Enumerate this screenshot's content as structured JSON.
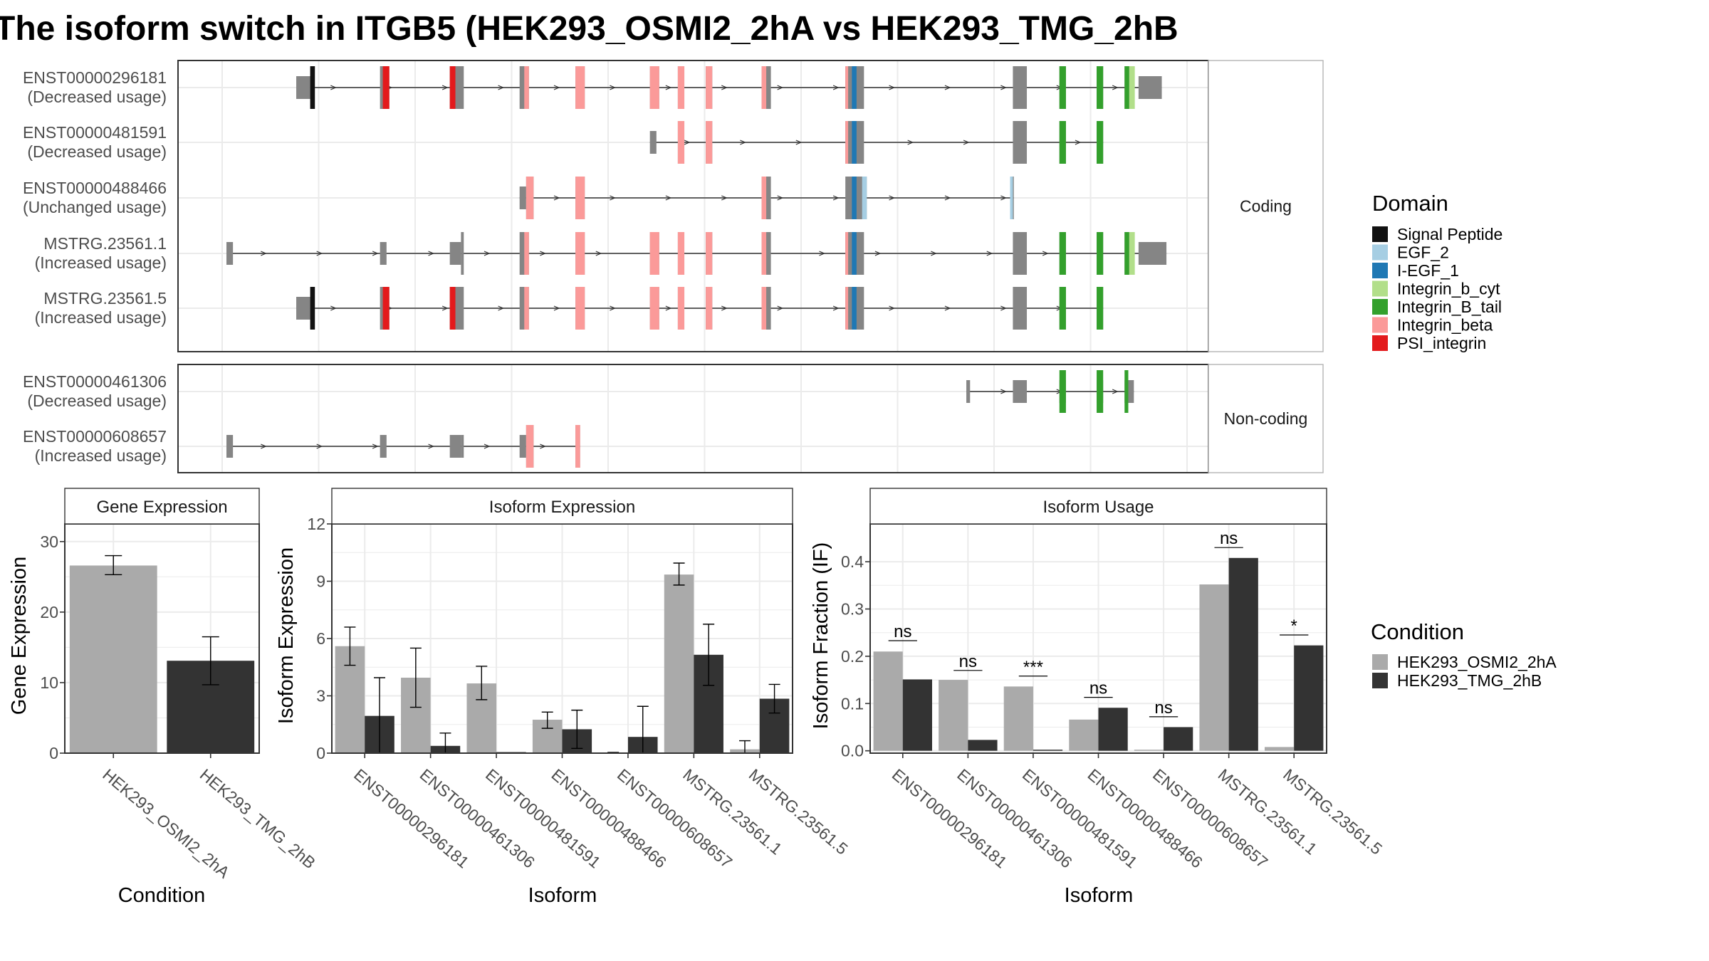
{
  "figure": {
    "title": "The isoform switch in ITGB5 (HEK293_OSMI2_2hA vs HEK293_TMG_2hB"
  },
  "colors": {
    "cond1": "#aaaaaa",
    "cond2": "#333333",
    "exon": "#858585",
    "strip": "#d9d9d9",
    "grid": "#ebebeb",
    "panel_border": "#333333"
  },
  "structure": {
    "coord_range": [
      0,
      100
    ],
    "groups": [
      {
        "strip_label": "Coding",
        "transcripts": [
          {
            "name": "ENST00000296181",
            "usage": "(Decreased usage)",
            "utr": [
              [
                7.5,
                9
              ],
              [
                98,
                100.5
              ]
            ],
            "exons": [
              [
                9,
                9.5
              ],
              [
                16.5,
                17.5
              ],
              [
                24,
                25.5
              ],
              [
                31.5,
                32.5
              ],
              [
                37.5,
                38.5
              ],
              [
                45.5,
                46.5
              ],
              [
                48.5,
                49.2
              ],
              [
                51.5,
                52.2
              ],
              [
                57.5,
                58.5
              ],
              [
                66.5,
                68.5
              ],
              [
                84.5,
                86
              ],
              [
                89.5,
                90.2
              ],
              [
                93.5,
                94.2
              ],
              [
                96.5,
                97.2
              ]
            ],
            "domains": [
              {
                "d": "Signal Peptide",
                "s": 9,
                "e": 9.5
              },
              {
                "d": "PSI_integrin",
                "s": 16.8,
                "e": 17.5
              },
              {
                "d": "PSI_integrin",
                "s": 24,
                "e": 24.6
              },
              {
                "d": "Integrin_beta",
                "s": 32,
                "e": 32.5
              },
              {
                "d": "Integrin_beta",
                "s": 37.5,
                "e": 38.5
              },
              {
                "d": "Integrin_beta",
                "s": 45.5,
                "e": 46.5
              },
              {
                "d": "Integrin_beta",
                "s": 48.5,
                "e": 49.2
              },
              {
                "d": "Integrin_beta",
                "s": 51.5,
                "e": 52.2
              },
              {
                "d": "Integrin_beta",
                "s": 57.5,
                "e": 58.0
              },
              {
                "d": "Integrin_beta",
                "s": 66.5,
                "e": 66.8
              },
              {
                "d": "I-EGF_1",
                "s": 67.2,
                "e": 67.7
              },
              {
                "d": "Integrin_B_tail",
                "s": 89.5,
                "e": 90.2
              },
              {
                "d": "Integrin_B_tail",
                "s": 93.5,
                "e": 94.2
              },
              {
                "d": "Integrin_B_tail",
                "s": 96.5,
                "e": 97.0
              },
              {
                "d": "Integrin_b_cyt",
                "s": 97.0,
                "e": 97.6
              }
            ]
          },
          {
            "name": "ENST00000481591",
            "usage": "(Decreased usage)",
            "utr": [
              [
                45.5,
                46.2
              ]
            ],
            "exons": [
              [
                48.5,
                49.2
              ],
              [
                51.5,
                52.2
              ],
              [
                66.5,
                68.5
              ],
              [
                84.5,
                86
              ],
              [
                89.5,
                90.2
              ],
              [
                93.5,
                94.2
              ]
            ],
            "domains": [
              {
                "d": "Integrin_beta",
                "s": 48.5,
                "e": 49.2
              },
              {
                "d": "Integrin_beta",
                "s": 51.5,
                "e": 52.2
              },
              {
                "d": "Integrin_beta",
                "s": 66.5,
                "e": 66.8
              },
              {
                "d": "I-EGF_1",
                "s": 67.2,
                "e": 67.7
              },
              {
                "d": "Integrin_B_tail",
                "s": 89.5,
                "e": 90.2
              },
              {
                "d": "Integrin_B_tail",
                "s": 93.5,
                "e": 94.2
              }
            ]
          },
          {
            "name": "ENST00000488466",
            "usage": "(Unchanged usage)",
            "utr": [
              [
                31.5,
                32.2
              ]
            ],
            "exons": [
              [
                32.2,
                33
              ],
              [
                37.5,
                38.5
              ],
              [
                57.5,
                58.5
              ],
              [
                66.5,
                68.8
              ],
              [
                84.2,
                84.6
              ]
            ],
            "domains": [
              {
                "d": "Integrin_beta",
                "s": 32.2,
                "e": 33
              },
              {
                "d": "Integrin_beta",
                "s": 37.5,
                "e": 38.5
              },
              {
                "d": "Integrin_beta",
                "s": 57.5,
                "e": 58.0
              },
              {
                "d": "I-EGF_1",
                "s": 67.2,
                "e": 67.7
              },
              {
                "d": "EGF_2",
                "s": 68.3,
                "e": 68.8
              },
              {
                "d": "EGF_2",
                "s": 84.2,
                "e": 84.5
              }
            ]
          },
          {
            "name": "MSTRG.23561.1",
            "usage": "(Increased usage)",
            "utr": [
              [
                0,
                0.7
              ],
              [
                16.5,
                17.2
              ],
              [
                24,
                25.2
              ],
              [
                98,
                101
              ]
            ],
            "exons": [
              [
                25.2,
                25.5
              ],
              [
                31.5,
                32.5
              ],
              [
                37.5,
                38.5
              ],
              [
                45.5,
                46.5
              ],
              [
                48.5,
                49.2
              ],
              [
                51.5,
                52.2
              ],
              [
                57.5,
                58.5
              ],
              [
                66.5,
                68.5
              ],
              [
                84.5,
                86
              ],
              [
                89.5,
                90.2
              ],
              [
                93.5,
                94.2
              ],
              [
                96.5,
                97.2
              ]
            ],
            "domains": [
              {
                "d": "Integrin_beta",
                "s": 32,
                "e": 32.5
              },
              {
                "d": "Integrin_beta",
                "s": 37.5,
                "e": 38.5
              },
              {
                "d": "Integrin_beta",
                "s": 45.5,
                "e": 46.5
              },
              {
                "d": "Integrin_beta",
                "s": 48.5,
                "e": 49.2
              },
              {
                "d": "Integrin_beta",
                "s": 51.5,
                "e": 52.2
              },
              {
                "d": "Integrin_beta",
                "s": 57.5,
                "e": 58.0
              },
              {
                "d": "Integrin_beta",
                "s": 66.5,
                "e": 66.8
              },
              {
                "d": "I-EGF_1",
                "s": 67.2,
                "e": 67.7
              },
              {
                "d": "Integrin_B_tail",
                "s": 89.5,
                "e": 90.2
              },
              {
                "d": "Integrin_B_tail",
                "s": 93.5,
                "e": 94.2
              },
              {
                "d": "Integrin_B_tail",
                "s": 96.5,
                "e": 97.0
              },
              {
                "d": "Integrin_b_cyt",
                "s": 97.0,
                "e": 97.6
              }
            ]
          },
          {
            "name": "MSTRG.23561.5",
            "usage": "(Increased usage)",
            "utr": [
              [
                7.5,
                9
              ]
            ],
            "exons": [
              [
                9,
                9.5
              ],
              [
                16.5,
                17.5
              ],
              [
                24,
                25.5
              ],
              [
                31.5,
                32.5
              ],
              [
                37.5,
                38.5
              ],
              [
                45.5,
                46.5
              ],
              [
                48.5,
                49.2
              ],
              [
                51.5,
                52.2
              ],
              [
                57.5,
                58.5
              ],
              [
                66.5,
                68.5
              ],
              [
                84.5,
                86
              ],
              [
                89.5,
                90.2
              ],
              [
                93.5,
                94.2
              ]
            ],
            "domains": [
              {
                "d": "Signal Peptide",
                "s": 9,
                "e": 9.5
              },
              {
                "d": "PSI_integrin",
                "s": 16.8,
                "e": 17.5
              },
              {
                "d": "PSI_integrin",
                "s": 24,
                "e": 24.6
              },
              {
                "d": "Integrin_beta",
                "s": 32,
                "e": 32.5
              },
              {
                "d": "Integrin_beta",
                "s": 37.5,
                "e": 38.5
              },
              {
                "d": "Integrin_beta",
                "s": 45.5,
                "e": 46.5
              },
              {
                "d": "Integrin_beta",
                "s": 48.5,
                "e": 49.2
              },
              {
                "d": "Integrin_beta",
                "s": 51.5,
                "e": 52.2
              },
              {
                "d": "Integrin_beta",
                "s": 57.5,
                "e": 58.0
              },
              {
                "d": "Integrin_beta",
                "s": 66.5,
                "e": 66.8
              },
              {
                "d": "I-EGF_1",
                "s": 67.2,
                "e": 67.7
              },
              {
                "d": "Integrin_B_tail",
                "s": 89.5,
                "e": 90.2
              },
              {
                "d": "Integrin_B_tail",
                "s": 93.5,
                "e": 94.2
              }
            ]
          }
        ]
      },
      {
        "strip_label": "Non-coding",
        "transcripts": [
          {
            "name": "ENST00000461306",
            "usage": "(Decreased usage)",
            "utr": [
              [
                79.5,
                79.9
              ],
              [
                84.5,
                86
              ],
              [
                89.5,
                90.2
              ],
              [
                93.5,
                94.2
              ],
              [
                96.5,
                97.5
              ]
            ],
            "exons": [],
            "domains": [
              {
                "d": "Integrin_B_tail",
                "s": 89.5,
                "e": 90.2
              },
              {
                "d": "Integrin_B_tail",
                "s": 93.5,
                "e": 94.2
              },
              {
                "d": "Integrin_B_tail",
                "s": 96.5,
                "e": 96.9
              }
            ]
          },
          {
            "name": "ENST00000608657",
            "usage": "(Increased usage)",
            "utr": [
              [
                0,
                0.7
              ],
              [
                16.5,
                17.2
              ],
              [
                24,
                25.2
              ],
              [
                25.2,
                25.5
              ],
              [
                31.5,
                32.2
              ]
            ],
            "exons": [
              [
                32.2,
                33
              ],
              [
                37.5,
                38
              ]
            ],
            "domains": [
              {
                "d": "Integrin_beta",
                "s": 32.2,
                "e": 33
              },
              {
                "d": "Integrin_beta",
                "s": 37.5,
                "e": 38
              }
            ]
          }
        ]
      }
    ]
  },
  "domain_legend": {
    "title": "Domain",
    "items": [
      {
        "label": "Signal Peptide",
        "color": "#111111"
      },
      {
        "label": "EGF_2",
        "color": "#a6cee3"
      },
      {
        "label": "I-EGF_1",
        "color": "#1f78b4"
      },
      {
        "label": "Integrin_b_cyt",
        "color": "#b2df8a"
      },
      {
        "label": "Integrin_B_tail",
        "color": "#33a02c"
      },
      {
        "label": "Integrin_beta",
        "color": "#fb9a99"
      },
      {
        "label": "PSI_integrin",
        "color": "#e31a1c"
      }
    ]
  },
  "condition_legend": {
    "title": "Condition",
    "items": [
      {
        "label": "HEK293_OSMI2_2hA",
        "color": "#aaaaaa"
      },
      {
        "label": "HEK293_TMG_2hB",
        "color": "#333333"
      }
    ]
  },
  "chart_data": [
    {
      "type": "bar",
      "title": "Gene Expression",
      "xlabel": "Condition",
      "ylabel": "Gene Expression",
      "ylim": [
        0,
        32.5
      ],
      "yticks": [
        0,
        10,
        20,
        30
      ],
      "categories": [
        "HEK293_OSMI2_2hA",
        "HEK293_TMG_2hB"
      ],
      "values": [
        26.6,
        13.1
      ],
      "err_low": [
        25.3,
        9.7
      ],
      "err_high": [
        28.0,
        16.5
      ]
    },
    {
      "type": "bar",
      "title": "Isoform Expression",
      "xlabel": "Isoform",
      "ylabel": "Isoform Expression",
      "ylim": [
        0,
        12
      ],
      "yticks": [
        0,
        3,
        6,
        9,
        12
      ],
      "categories": [
        "ENST00000296181",
        "ENST00000461306",
        "ENST00000481591",
        "ENST00000488466",
        "ENST00000608657",
        "MSTRG.23561.1",
        "MSTRG.23561.5"
      ],
      "series": [
        {
          "name": "HEK293_OSMI2_2hA",
          "values": [
            5.6,
            3.95,
            3.65,
            1.75,
            0.02,
            9.35,
            0.2
          ],
          "err_low": [
            4.6,
            2.4,
            2.8,
            1.3,
            0.0,
            8.8,
            0.0
          ],
          "err_high": [
            6.6,
            5.5,
            4.55,
            2.15,
            0.04,
            9.95,
            0.65
          ]
        },
        {
          "name": "HEK293_TMG_2hB",
          "values": [
            1.95,
            0.38,
            0.0,
            1.25,
            0.85,
            5.15,
            2.85
          ],
          "err_low": [
            0.0,
            0.0,
            0.0,
            0.25,
            0.0,
            3.55,
            2.1
          ],
          "err_high": [
            3.95,
            1.05,
            0.0,
            2.25,
            2.45,
            6.75,
            3.6
          ]
        }
      ]
    },
    {
      "type": "bar",
      "title": "Isoform Usage",
      "xlabel": "Isoform",
      "ylabel": "Isoform Fraction (IF)",
      "ylim": [
        -0.005,
        0.48
      ],
      "yticks": [
        0.0,
        0.1,
        0.2,
        0.3,
        0.4
      ],
      "ytick_labels": [
        "0.0",
        "0.1",
        "0.2",
        "0.3",
        "0.4"
      ],
      "categories": [
        "ENST00000296181",
        "ENST00000461306",
        "ENST00000481591",
        "ENST00000488466",
        "ENST00000608657",
        "MSTRG.23561.1",
        "MSTRG.23561.5"
      ],
      "series": [
        {
          "name": "HEK293_OSMI2_2hA",
          "values": [
            0.21,
            0.15,
            0.136,
            0.066,
            0.0,
            0.352,
            0.008
          ]
        },
        {
          "name": "HEK293_TMG_2hB",
          "values": [
            0.151,
            0.023,
            0.0,
            0.091,
            0.05,
            0.408,
            0.223
          ]
        }
      ],
      "annotations": [
        {
          "category": "ENST00000296181",
          "label": "ns",
          "y": 0.233
        },
        {
          "category": "ENST00000461306",
          "label": "ns",
          "y": 0.17
        },
        {
          "category": "ENST00000481591",
          "label": "***",
          "y": 0.158
        },
        {
          "category": "ENST00000488466",
          "label": "ns",
          "y": 0.113
        },
        {
          "category": "ENST00000608657",
          "label": "ns",
          "y": 0.072
        },
        {
          "category": "MSTRG.23561.1",
          "label": "ns",
          "y": 0.43
        },
        {
          "category": "MSTRG.23561.5",
          "label": "*",
          "y": 0.245
        }
      ]
    }
  ]
}
